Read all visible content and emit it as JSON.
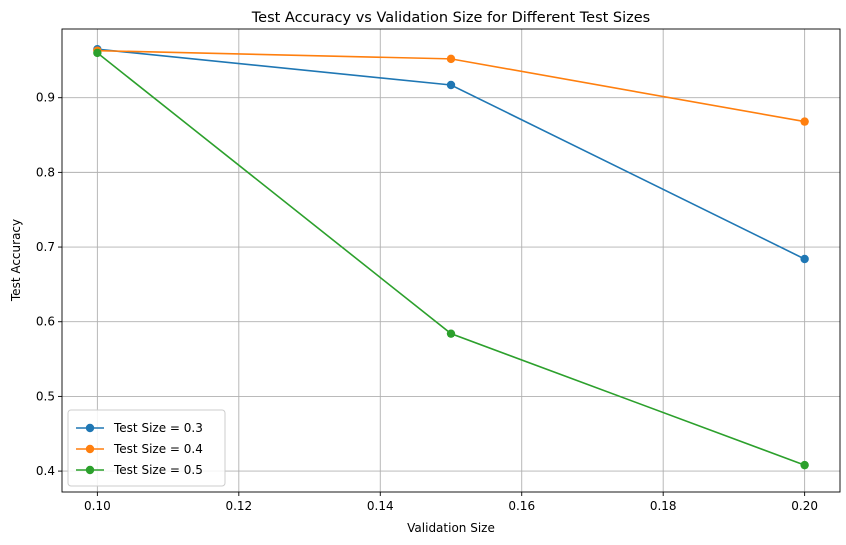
{
  "chart_data": {
    "type": "line",
    "title": "Test Accuracy vs Validation Size for Different Test Sizes",
    "xlabel": "Validation Size",
    "ylabel": "Test Accuracy",
    "x": [
      0.1,
      0.15,
      0.2
    ],
    "xlim": [
      0.095,
      0.205
    ],
    "ylim": [
      0.372,
      0.992
    ],
    "xticks": [
      0.1,
      0.12,
      0.14,
      0.16,
      0.18,
      0.2
    ],
    "xtick_labels": [
      "0.10",
      "0.12",
      "0.14",
      "0.16",
      "0.18",
      "0.20"
    ],
    "yticks": [
      0.4,
      0.5,
      0.6,
      0.7,
      0.8,
      0.9
    ],
    "ytick_labels": [
      "0.4",
      "0.5",
      "0.6",
      "0.7",
      "0.8",
      "0.9"
    ],
    "grid": true,
    "legend_position": "bottom-left",
    "series": [
      {
        "name": "Test Size = 0.3",
        "color": "#1f77b4",
        "values": [
          0.965,
          0.917,
          0.684
        ]
      },
      {
        "name": "Test Size = 0.4",
        "color": "#ff7f0e",
        "values": [
          0.963,
          0.952,
          0.868
        ]
      },
      {
        "name": "Test Size = 0.5",
        "color": "#2ca02c",
        "values": [
          0.96,
          0.584,
          0.408
        ]
      }
    ]
  }
}
